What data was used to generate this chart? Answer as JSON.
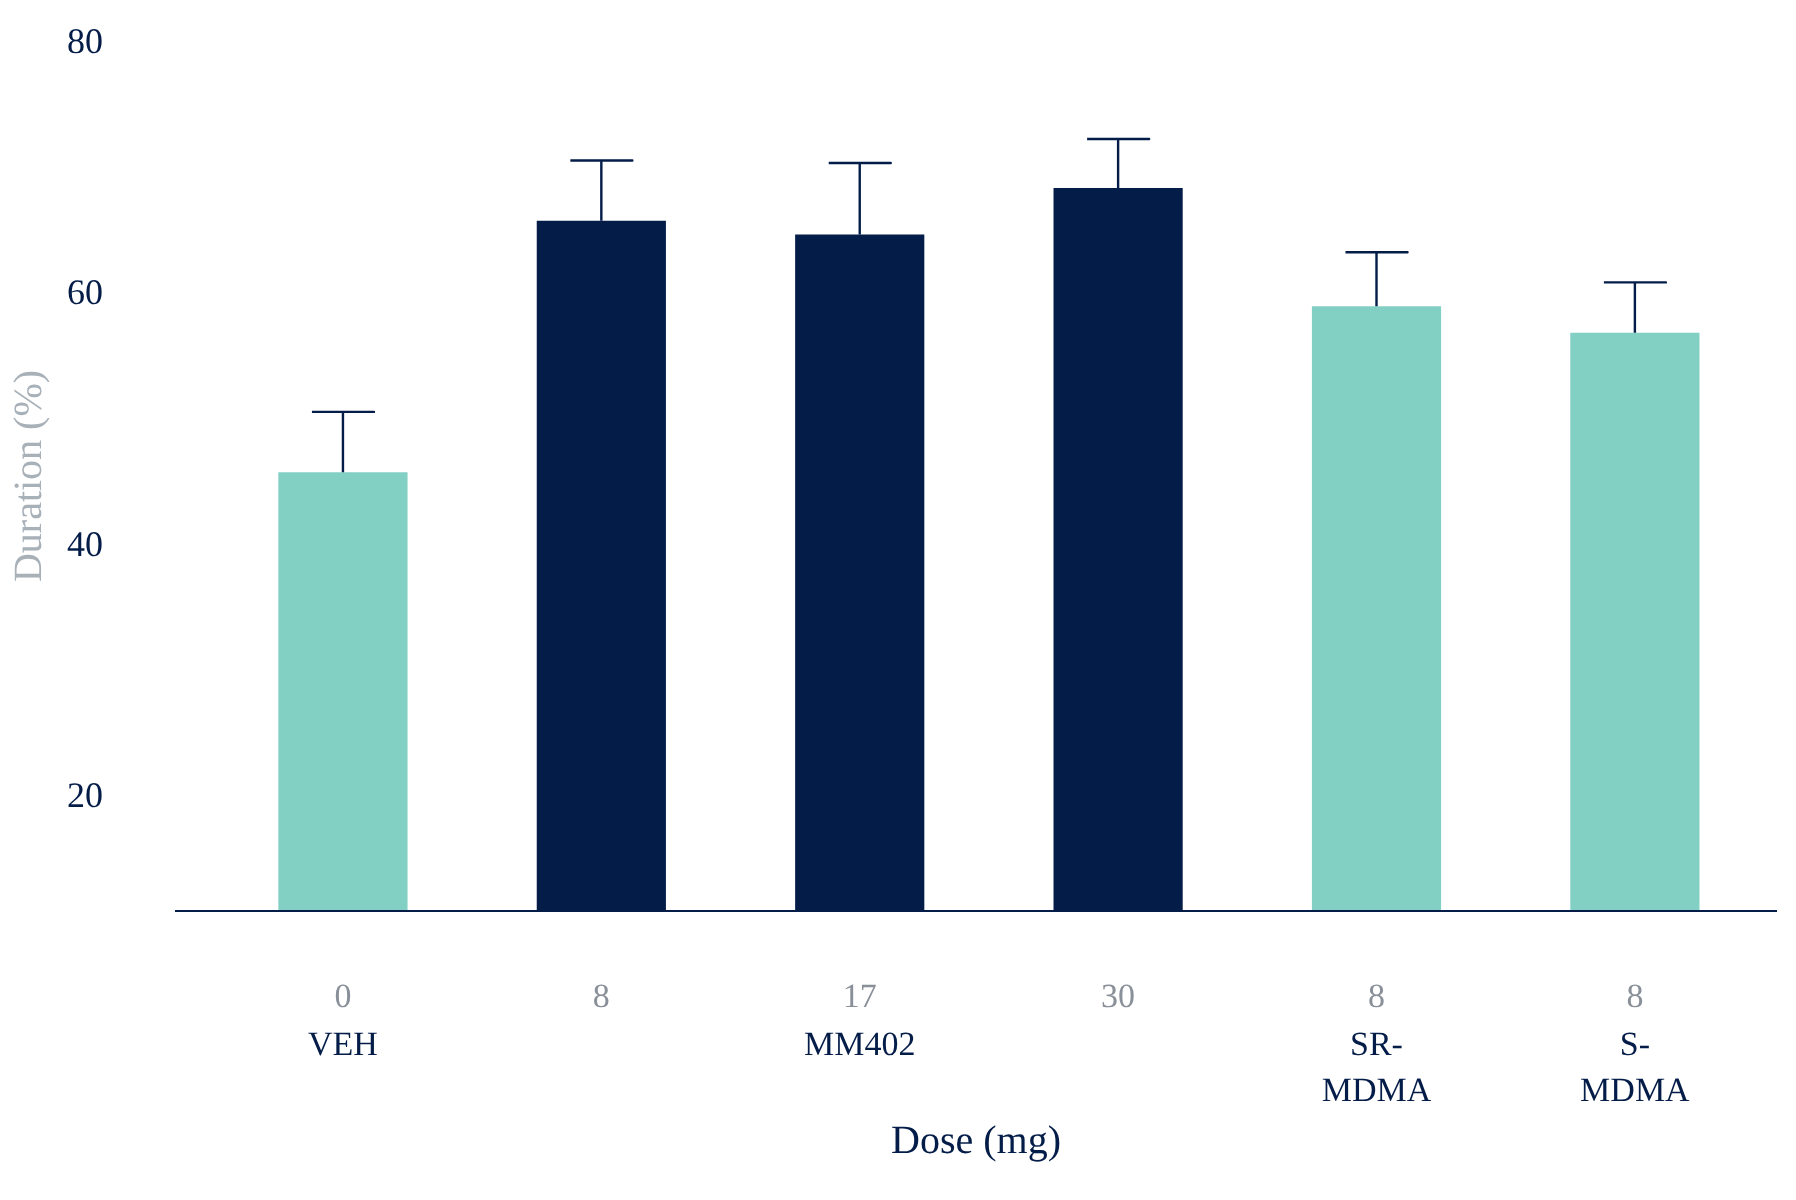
{
  "chart_data": {
    "type": "bar",
    "categories": [
      "0",
      "8",
      "17",
      "30",
      "8",
      "8"
    ],
    "values": [
      45.7,
      65.7,
      64.6,
      68.3,
      58.9,
      56.8
    ],
    "colors": [
      "#82cfc4",
      "#041c48",
      "#041c48",
      "#041c48",
      "#82cfc4",
      "#82cfc4"
    ],
    "errors": [
      [
        45.7,
        50.5
      ],
      [
        65.7,
        70.5
      ],
      [
        64.6,
        70.3
      ],
      [
        68.3,
        72.2
      ],
      [
        58.9,
        63.2
      ],
      [
        56.8,
        60.8
      ]
    ],
    "xlabel": "Dose (mg)",
    "ylabel": "Duration (%)",
    "ylim": [
      10.8,
      80
    ],
    "yticks": [
      20,
      40,
      60,
      80
    ],
    "annotations": [
      "VEH",
      "MM402",
      "SR-\nMDMA",
      "S-\nMDMA"
    ],
    "grid": false
  }
}
